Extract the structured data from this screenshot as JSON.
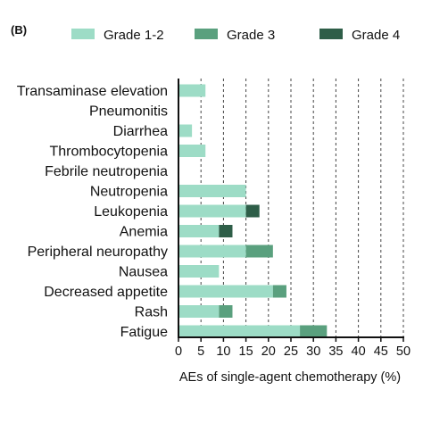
{
  "panel_label": "(B)",
  "colors": {
    "grade_1_2": "#9ddcc6",
    "grade_3": "#5aa07e",
    "grade_4": "#2e5e48",
    "axis": "#111111",
    "grid": "#444444"
  },
  "chart_data": {
    "type": "bar",
    "orientation": "horizontal",
    "stacked": true,
    "categories": [
      "Transaminase elevation",
      "Pneumonitis",
      "Diarrhea",
      "Thrombocytopenia",
      "Febrile neutropenia",
      "Neutropenia",
      "Leukopenia",
      "Anemia",
      "Peripheral neuropathy",
      "Nausea",
      "Decreased appetite",
      "Rash",
      "Fatigue"
    ],
    "series": [
      {
        "name": "Grade 1-2",
        "values": [
          6,
          0,
          3,
          6,
          0,
          15,
          15,
          9,
          15,
          9,
          21,
          9,
          27
        ]
      },
      {
        "name": "Grade 3",
        "values": [
          0,
          0,
          0,
          0,
          0,
          0,
          0,
          0,
          6,
          0,
          3,
          3,
          6
        ]
      },
      {
        "name": "Grade 4",
        "values": [
          0,
          0,
          0,
          0,
          0,
          0,
          3,
          3,
          0,
          0,
          0,
          0,
          0
        ]
      }
    ],
    "xlabel": "AEs of single-agent chemotherapy (%)",
    "xlim": [
      0,
      50
    ],
    "xticks": [
      "0",
      "5",
      "10",
      "15",
      "20",
      "25",
      "30",
      "35",
      "40",
      "45",
      "50"
    ],
    "grid": "vertical dashed",
    "legend_position": "top"
  }
}
